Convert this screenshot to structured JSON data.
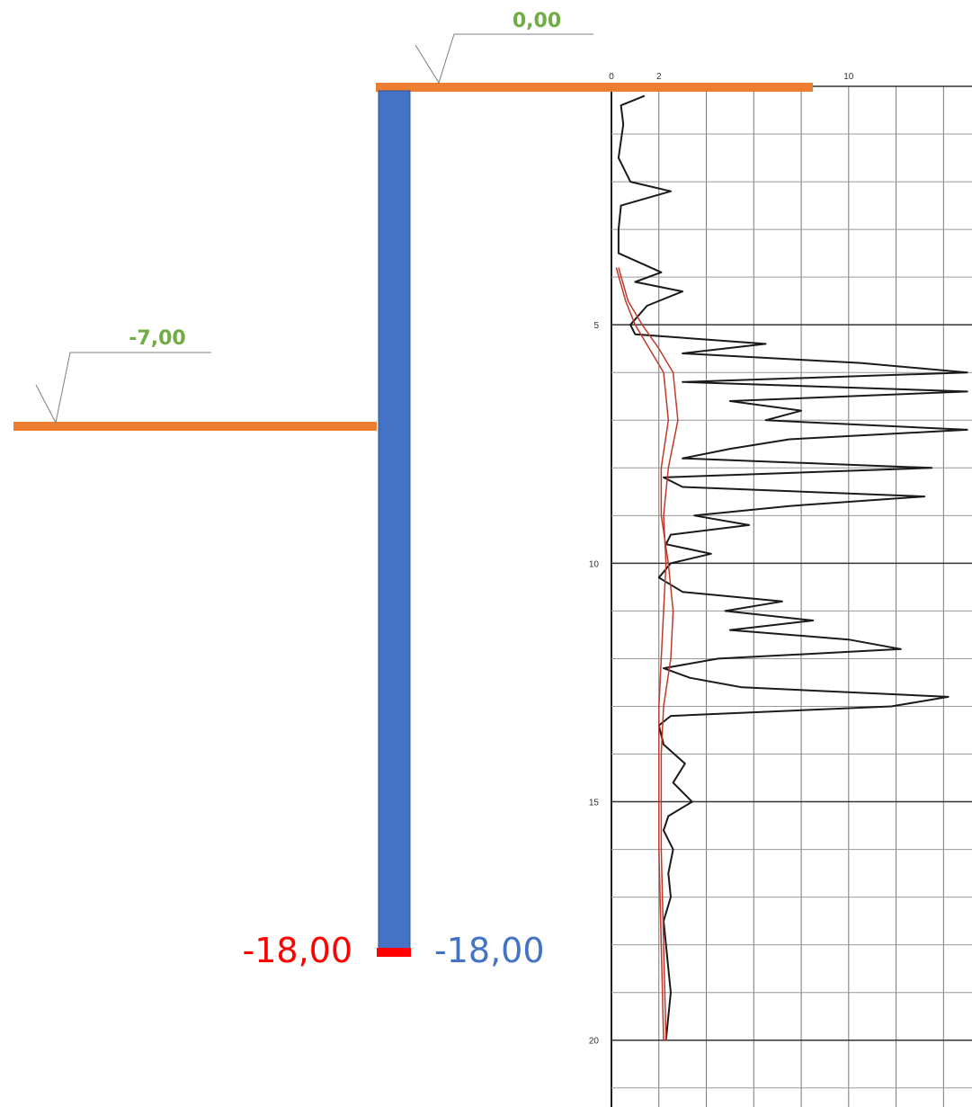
{
  "levels": [
    {
      "label": "0,00"
    },
    {
      "label": "-7,00"
    }
  ],
  "pile": {
    "toe_label_left": "-18,00",
    "toe_label_right": "-18,00"
  },
  "chart_data": {
    "type": "line",
    "xlim": [
      0,
      15.2
    ],
    "ylim": [
      0,
      21.4
    ],
    "xticks": [
      0,
      2,
      10
    ],
    "yticks": [
      5,
      10,
      15,
      20
    ],
    "xgrid": [
      0,
      2,
      4,
      6,
      8,
      10,
      12,
      14
    ],
    "ygrid": [
      0,
      1,
      2,
      3,
      4,
      5,
      6,
      7,
      8,
      9,
      10,
      11,
      12,
      13,
      14,
      15,
      16,
      17,
      18,
      19,
      20,
      21
    ],
    "series": [
      {
        "color": "#1a1a1a",
        "depth": [
          0.2,
          0.4,
          0.8,
          1.5,
          2.0,
          2.2,
          2.5,
          3.0,
          3.5,
          3.7,
          3.9,
          4.1,
          4.3,
          4.6,
          5.0,
          5.2,
          5.4,
          5.6,
          5.8,
          6.0,
          6.2,
          6.4,
          6.6,
          6.8,
          7.0,
          7.2,
          7.4,
          7.6,
          7.8,
          8.0,
          8.2,
          8.4,
          8.6,
          8.8,
          9.0,
          9.2,
          9.4,
          9.6,
          9.8,
          10.0,
          10.3,
          10.6,
          10.8,
          11.0,
          11.2,
          11.4,
          11.6,
          11.8,
          12.0,
          12.2,
          12.4,
          12.6,
          12.8,
          13.0,
          13.2,
          13.4,
          13.8,
          14.2,
          14.6,
          15.0,
          15.3,
          15.6,
          16.0,
          16.5,
          17.0,
          17.5,
          18.0,
          18.5,
          19.0,
          19.5,
          20.0
        ],
        "values": [
          1.4,
          0.4,
          0.5,
          0.3,
          0.8,
          2.5,
          0.4,
          0.3,
          0.3,
          1.2,
          2.1,
          1.0,
          3.0,
          1.5,
          0.8,
          1.0,
          6.5,
          3.0,
          10.5,
          15.0,
          3.0,
          15.0,
          5.0,
          8.0,
          6.5,
          15.0,
          7.5,
          5.0,
          3.0,
          13.5,
          2.2,
          3.0,
          13.2,
          7.5,
          3.5,
          5.8,
          2.5,
          2.3,
          4.2,
          2.5,
          2.0,
          3.0,
          7.2,
          4.8,
          8.5,
          5.0,
          10.0,
          12.2,
          4.5,
          2.2,
          3.3,
          5.5,
          14.2,
          11.8,
          2.5,
          2.0,
          2.2,
          3.1,
          2.6,
          3.4,
          2.4,
          2.2,
          2.6,
          2.4,
          2.5,
          2.2,
          2.3,
          2.4,
          2.5,
          2.4,
          2.3
        ]
      },
      {
        "color": "#c0392b",
        "depth": [
          3.8,
          4.5,
          5.0,
          5.5,
          6.0,
          7.0,
          8.0,
          9.0,
          10.0,
          11.0,
          12.0,
          13.0,
          14.0,
          16.0,
          18.0,
          20.0
        ],
        "values": [
          0.2,
          0.6,
          1.0,
          1.6,
          2.2,
          2.4,
          2.1,
          2.1,
          2.4,
          2.6,
          2.5,
          2.2,
          2.1,
          2.1,
          2.2,
          2.3
        ]
      },
      {
        "color": "#c0392b",
        "depth": [
          3.8,
          4.5,
          5.0,
          5.5,
          6.0,
          7.0,
          8.0,
          9.0,
          10.0,
          11.0,
          12.0,
          13.0,
          14.0,
          16.0,
          18.0,
          20.0
        ],
        "values": [
          0.3,
          0.7,
          1.3,
          2.0,
          2.6,
          2.8,
          2.4,
          2.2,
          2.3,
          2.2,
          2.1,
          2.0,
          2.0,
          2.0,
          2.1,
          2.2
        ]
      }
    ]
  }
}
